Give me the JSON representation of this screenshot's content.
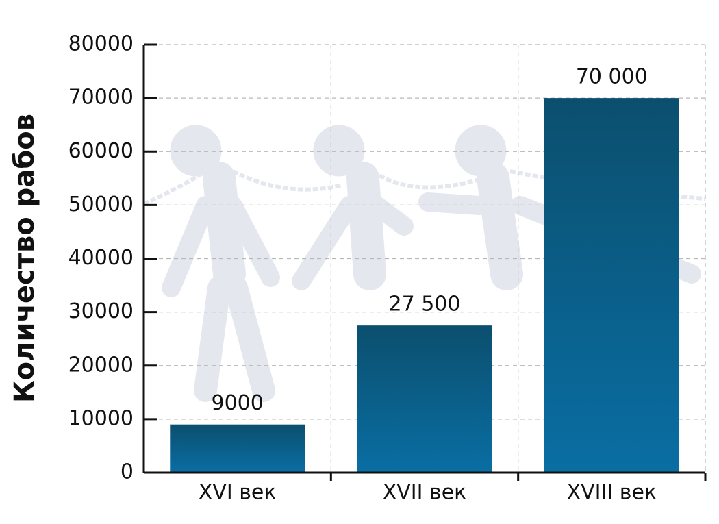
{
  "chart_data": {
    "type": "bar",
    "y_label": "Количество рабов",
    "categories": [
      "XVI век",
      "XVII век",
      "XVIII век"
    ],
    "values": [
      9000,
      27500,
      70000
    ],
    "value_labels": [
      "9000",
      "27 500",
      "70 000"
    ],
    "color": "#0a6ea3",
    "ylim": [
      0,
      80000
    ],
    "yticks": [
      0,
      10000,
      20000,
      30000,
      40000,
      50000,
      60000,
      70000,
      80000
    ],
    "grid": true
  }
}
